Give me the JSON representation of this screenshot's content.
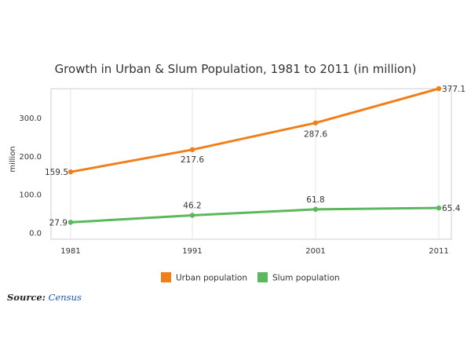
{
  "chart_data": {
    "type": "line",
    "title": "Growth in Urban & Slum Population, 1981 to 2011 (in million)",
    "ylabel": "million",
    "xlabel": "",
    "categories": [
      "1981",
      "1991",
      "2001",
      "2011"
    ],
    "yticks": [
      "0.0",
      "100.0",
      "200.0",
      "300.0"
    ],
    "ylim": [
      0,
      377.1
    ],
    "grid": true,
    "legend_position": "bottom",
    "series": [
      {
        "name": "Urban population",
        "color": "#f07f1a",
        "values": [
          159.5,
          217.6,
          287.6,
          377.1
        ],
        "labels": [
          "159.5",
          "217.6",
          "287.6",
          "377.1"
        ]
      },
      {
        "name": "Slum population",
        "color": "#5cb85c",
        "values": [
          27.9,
          46.2,
          61.8,
          65.4
        ],
        "labels": [
          "27.9",
          "46.2",
          "61.8",
          "65.4"
        ]
      }
    ]
  },
  "source": {
    "label": "Source:",
    "link_text": "Census"
  }
}
